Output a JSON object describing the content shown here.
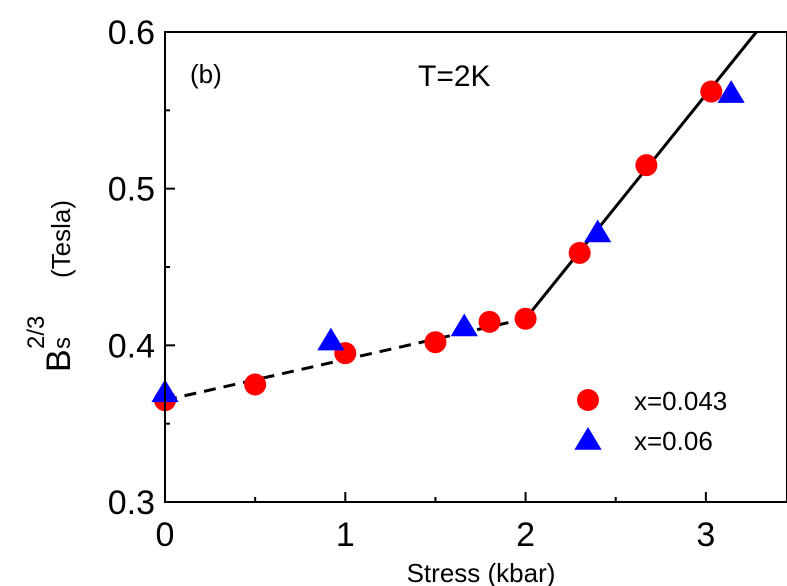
{
  "chart_data": {
    "type": "scatter",
    "panel_label": "(b)",
    "annotation": "T=2K",
    "xlabel": "Stress (kbar)",
    "ylabel": {
      "base": "B",
      "subscript": "s",
      "superscript": "2/3",
      "unit": "(Tesla)"
    },
    "xlim": [
      0,
      3.45
    ],
    "ylim": [
      0.3,
      0.6
    ],
    "xticks": [
      0,
      1,
      2,
      3
    ],
    "xtick_labels": [
      "0",
      "1",
      "2",
      "3"
    ],
    "yticks": [
      0.3,
      0.4,
      0.5,
      0.6
    ],
    "ytick_labels": [
      "0.3",
      "0.4",
      "0.5",
      "0.6"
    ],
    "grid": false,
    "legend_position": "bottom-right",
    "series": [
      {
        "name": "x=0.043",
        "marker": "circle",
        "color": "#ff0000",
        "x": [
          0,
          0.5,
          1.0,
          1.5,
          1.8,
          2.0,
          2.3,
          2.67,
          3.03
        ],
        "y": [
          0.365,
          0.375,
          0.395,
          0.402,
          0.415,
          0.417,
          0.459,
          0.515,
          0.562
        ]
      },
      {
        "name": "x=0.06",
        "marker": "triangle",
        "color": "#0000ff",
        "x": [
          0,
          0.92,
          1.66,
          2.4,
          3.14
        ],
        "y": [
          0.37,
          0.403,
          0.412,
          0.472,
          0.561
        ]
      }
    ],
    "fit_lines": [
      {
        "style": "dashed",
        "color": "#000000",
        "x": [
          0,
          2.0
        ],
        "y": [
          0.365,
          0.417
        ]
      },
      {
        "style": "solid",
        "color": "#000000",
        "x": [
          2.0,
          3.28
        ],
        "y": [
          0.417,
          0.6
        ]
      }
    ]
  }
}
